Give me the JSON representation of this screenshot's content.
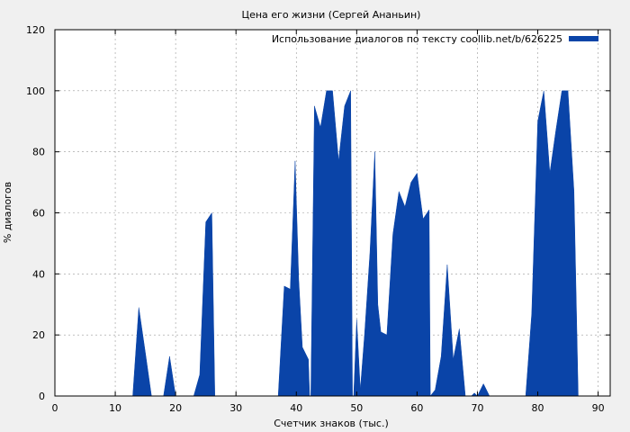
{
  "chart_data": {
    "type": "area",
    "title": "Цена его жизни (Сергей Ананьин)",
    "xlabel": "Счетчик знаков (тыс.)",
    "ylabel": "% диалогов",
    "xlim": [
      0,
      92
    ],
    "ylim": [
      0,
      120
    ],
    "xticks": [
      0,
      10,
      20,
      30,
      40,
      50,
      60,
      70,
      80,
      90
    ],
    "yticks": [
      0,
      20,
      40,
      60,
      80,
      100,
      120
    ],
    "grid": true,
    "legend_position": "top-right",
    "series": [
      {
        "name": "Использование диалогов по тексту coollib.net/b/626225",
        "color": "#0a44a8",
        "points": [
          [
            0,
            0
          ],
          [
            12.9,
            0
          ],
          [
            13.9,
            29
          ],
          [
            15,
            14
          ],
          [
            16,
            0
          ],
          [
            18,
            0
          ],
          [
            19,
            13
          ],
          [
            20,
            0
          ],
          [
            23,
            0
          ],
          [
            24,
            7
          ],
          [
            25,
            57
          ],
          [
            26,
            60
          ],
          [
            26.5,
            0
          ],
          [
            37,
            0
          ],
          [
            38,
            36
          ],
          [
            39,
            35
          ],
          [
            39.8,
            77
          ],
          [
            40.4,
            38
          ],
          [
            41,
            16
          ],
          [
            42,
            12
          ],
          [
            42.2,
            0
          ],
          [
            42.4,
            0
          ],
          [
            43,
            95
          ],
          [
            44,
            88
          ],
          [
            45,
            100
          ],
          [
            46,
            100
          ],
          [
            47,
            77
          ],
          [
            48,
            95
          ],
          [
            49,
            100
          ],
          [
            49.3,
            0
          ],
          [
            49.5,
            0
          ],
          [
            50,
            25
          ],
          [
            50.6,
            2
          ],
          [
            51.3,
            20
          ],
          [
            52.2,
            47
          ],
          [
            53,
            80
          ],
          [
            53.5,
            30
          ],
          [
            54,
            21
          ],
          [
            55,
            20
          ],
          [
            56,
            53
          ],
          [
            57,
            67
          ],
          [
            58,
            62
          ],
          [
            59,
            70
          ],
          [
            60,
            73
          ],
          [
            61,
            58
          ],
          [
            62,
            61
          ],
          [
            62.2,
            0
          ],
          [
            63,
            2
          ],
          [
            64,
            13
          ],
          [
            65,
            43
          ],
          [
            66,
            12
          ],
          [
            67,
            22
          ],
          [
            68,
            0
          ],
          [
            69,
            0
          ],
          [
            69.5,
            1
          ],
          [
            70,
            0
          ],
          [
            71,
            4
          ],
          [
            72,
            0
          ],
          [
            78,
            0
          ],
          [
            79,
            27
          ],
          [
            80,
            90
          ],
          [
            81,
            100
          ],
          [
            82,
            73
          ],
          [
            83,
            87
          ],
          [
            84,
            100
          ],
          [
            85,
            100
          ],
          [
            86,
            67
          ],
          [
            86.7,
            0
          ],
          [
            92,
            0
          ]
        ]
      }
    ]
  }
}
